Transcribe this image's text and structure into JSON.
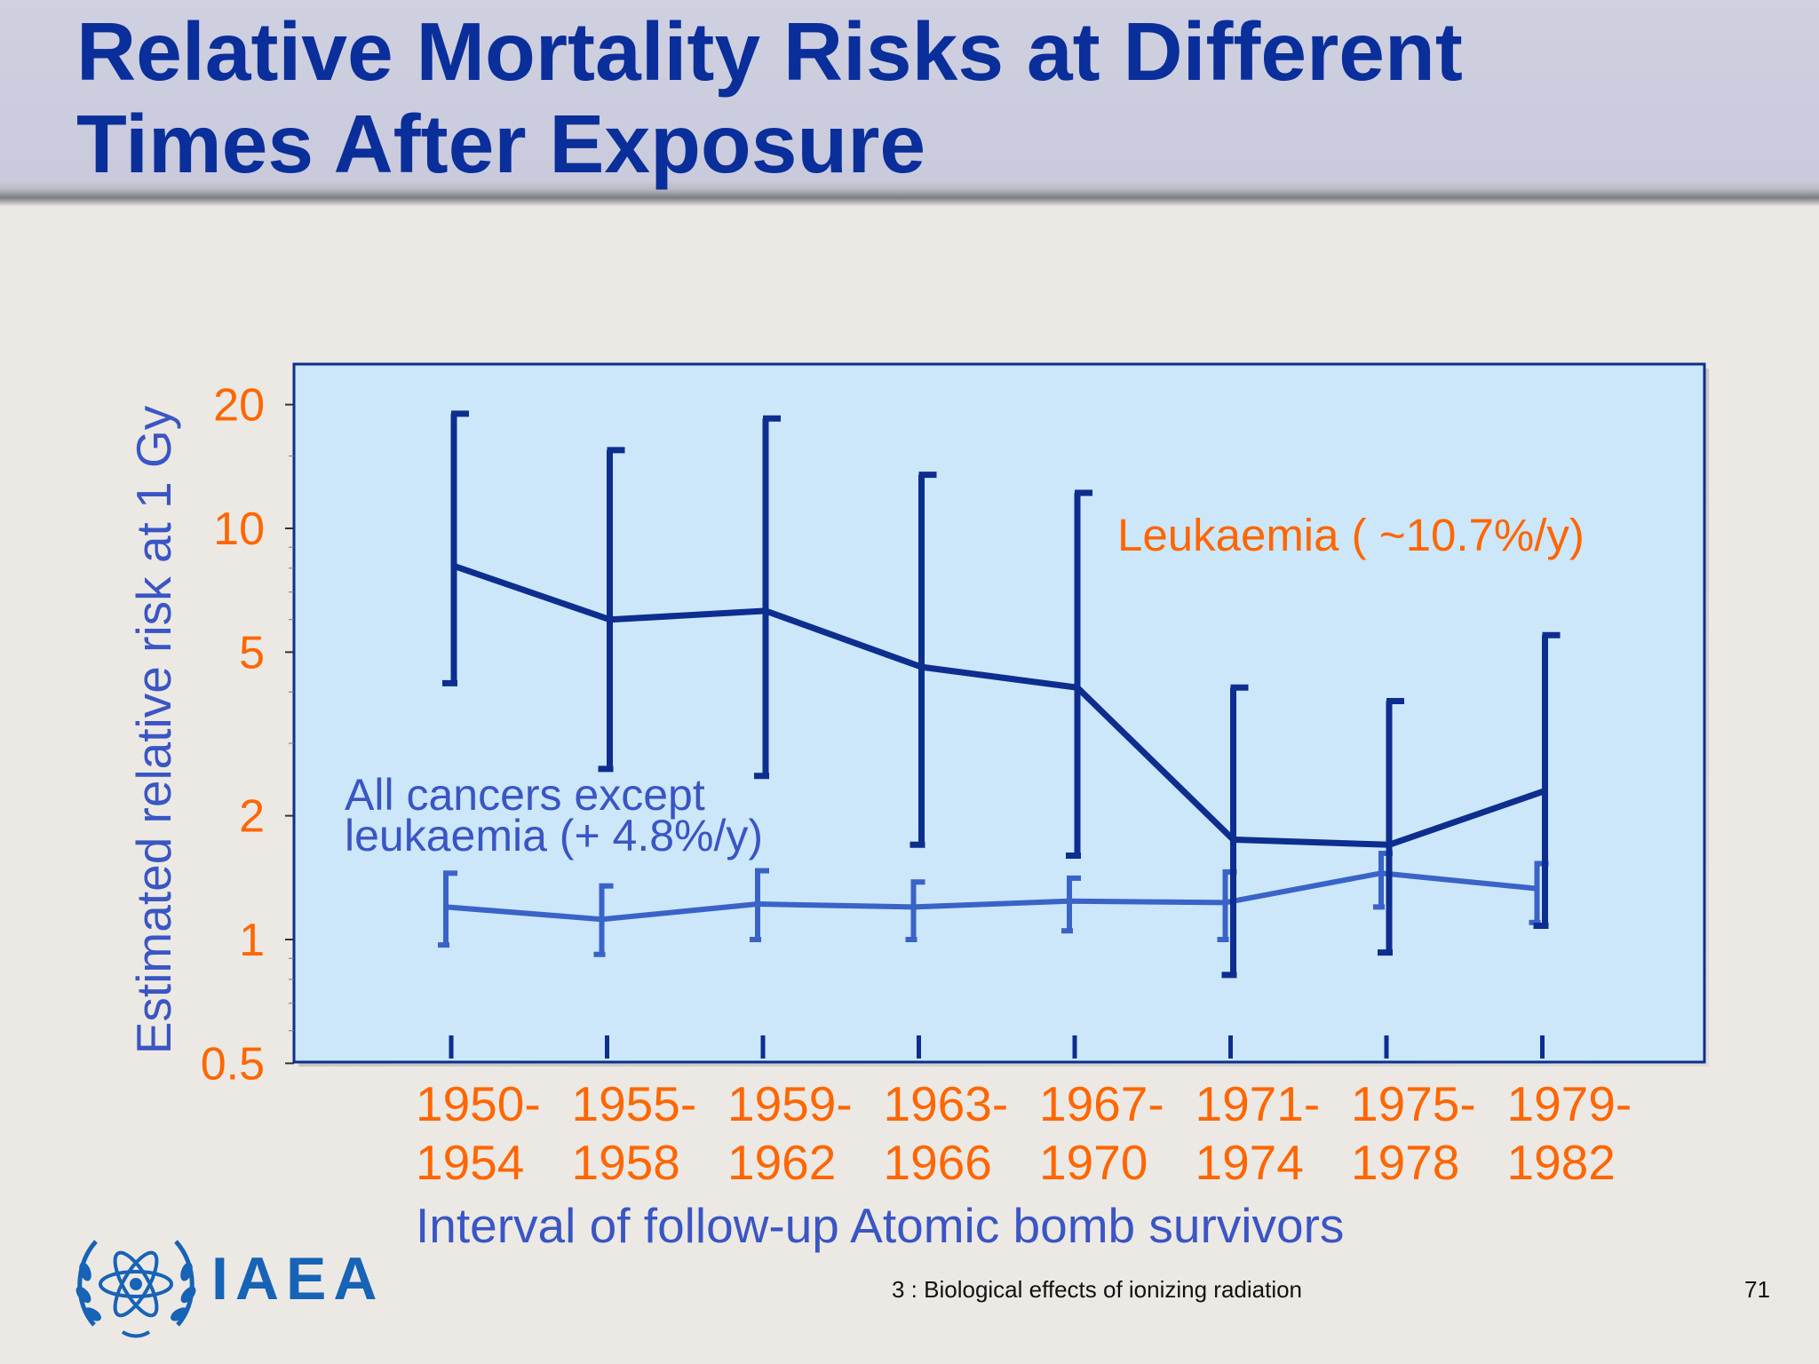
{
  "slide": {
    "title": "Relative Mortality Risks at Different\nTimes After Exposure",
    "footer": "3 : Biological effects of ionizing radiation",
    "page_number": "71",
    "logo_text": "IAEA"
  },
  "colors": {
    "title": "#0a2e9a",
    "plot_background": "#cce7f9",
    "leukaemia_series": "#0d2e8f",
    "other_cancers_series": "#3a63c8",
    "tick_labels": "#ff6600",
    "axis_titles": "#3a55c4",
    "logo": "#1763b6"
  },
  "chart_data": {
    "type": "line",
    "title": "",
    "xlabel": "Interval of follow-up Atomic bomb survivors",
    "ylabel": "Estimated relative risk at 1 Gy",
    "yscale": "log",
    "ylim": [
      0.5,
      25
    ],
    "yticks": [
      0.5,
      1,
      2,
      5,
      10,
      20
    ],
    "ytick_labels": [
      "0.5",
      "1",
      "2",
      "5",
      "10",
      "20"
    ],
    "categories": [
      "1950-\n1954",
      "1955-\n1958",
      "1959-\n1962",
      "1963-\n1966",
      "1967-\n1970",
      "1971-\n1974",
      "1975-\n1978",
      "1979-\n1982"
    ],
    "series": [
      {
        "name": "Leukaemia ( ~10.7%/y)",
        "values": [
          8.1,
          6.0,
          6.3,
          4.6,
          4.1,
          1.75,
          1.7,
          2.3
        ],
        "lower": [
          4.2,
          2.6,
          2.5,
          1.7,
          1.6,
          0.82,
          0.93,
          1.08
        ],
        "upper": [
          19,
          15.5,
          18.5,
          13.5,
          12.2,
          4.1,
          3.8,
          5.5
        ]
      },
      {
        "name": "All cancers except\nleukaemia (+ 4.8%/y)",
        "values": [
          1.2,
          1.12,
          1.22,
          1.2,
          1.24,
          1.23,
          1.45,
          1.33
        ],
        "lower": [
          0.97,
          0.92,
          1.0,
          1.0,
          1.05,
          1.0,
          1.2,
          1.1
        ],
        "upper": [
          1.45,
          1.35,
          1.47,
          1.38,
          1.41,
          1.46,
          1.62,
          1.53
        ]
      }
    ]
  }
}
